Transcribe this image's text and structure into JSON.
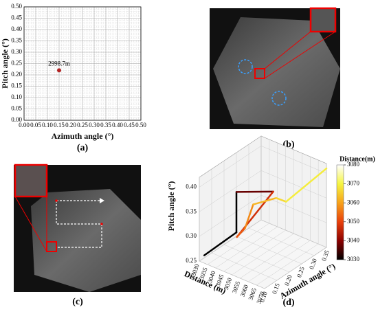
{
  "chart_data": [
    {
      "type": "scatter",
      "label": "(a)",
      "xlabel": "Azimuth angle (°)",
      "ylabel": "Pitch angle (°)",
      "x": [
        0.15
      ],
      "y": [
        0.22
      ],
      "annotations": [
        "2998.7m"
      ],
      "color": "#b22222",
      "xlim": [
        0,
        0.5
      ],
      "ylim": [
        0,
        0.5
      ],
      "minor_grid_step": 0.01,
      "xticks": [
        {
          "value": 0,
          "label": "0.00"
        },
        {
          "value": 0.05,
          "label": "0.05"
        },
        {
          "value": 0.1,
          "label": "0.10"
        },
        {
          "value": 0.15,
          "label": "0.15"
        },
        {
          "value": 0.2,
          "label": "0.20"
        },
        {
          "value": 0.25,
          "label": "0.25"
        },
        {
          "value": 0.3,
          "label": "0.30"
        },
        {
          "value": 0.35,
          "label": "0.35"
        },
        {
          "value": 0.4,
          "label": "0.40"
        },
        {
          "value": 0.45,
          "label": "0.45"
        },
        {
          "value": 0.5,
          "label": "0.50"
        }
      ],
      "yticks": [
        {
          "value": 0,
          "label": "0.00"
        },
        {
          "value": 0.05,
          "label": "0.05"
        },
        {
          "value": 0.1,
          "label": "0.10"
        },
        {
          "value": 0.15,
          "label": "0.15"
        },
        {
          "value": 0.2,
          "label": "0.20"
        },
        {
          "value": 0.25,
          "label": "0.25"
        },
        {
          "value": 0.3,
          "label": "0.30"
        },
        {
          "value": 0.35,
          "label": "0.35"
        },
        {
          "value": 0.4,
          "label": "0.40"
        },
        {
          "value": 0.45,
          "label": "0.45"
        },
        {
          "value": 0.5,
          "label": "0.50"
        }
      ]
    },
    {
      "type": "line3d",
      "label": "(d)",
      "xlabel": "Azimuth angle (°)",
      "ylabel": "Distance (m)",
      "zlabel": "Pitch angle (°)",
      "colorbar_label": "Distance(m)",
      "x": [
        0.12,
        0.25,
        0.25,
        0.3,
        0.12,
        0.12,
        0.12,
        0.18,
        0.2,
        0.35
      ],
      "y": [
        3030,
        3030,
        3030,
        3045,
        3050,
        3055,
        3060,
        3065,
        3068,
        3070
      ],
      "z": [
        0.255,
        0.258,
        0.34,
        0.345,
        0.32,
        0.345,
        0.4,
        0.4,
        0.39,
        0.41
      ],
      "xlim": [
        0.1,
        0.35
      ],
      "ylim": [
        3030,
        3070
      ],
      "zlim": [
        0.25,
        0.42
      ],
      "clim": [
        3030,
        3080
      ],
      "colormap": [
        "#000000",
        "#8b0000",
        "#e8400c",
        "#f7a21b",
        "#f5f542",
        "#ffffff"
      ],
      "xticks": [
        {
          "value": 0.1,
          "label": "0.10"
        },
        {
          "value": 0.15,
          "label": "0.15"
        },
        {
          "value": 0.2,
          "label": "0.20"
        },
        {
          "value": 0.25,
          "label": "0.25"
        },
        {
          "value": 0.3,
          "label": "0.30"
        },
        {
          "value": 0.35,
          "label": "0.35"
        }
      ],
      "yticks": [
        3030,
        3035,
        3040,
        3045,
        3050,
        3055,
        3060,
        3065,
        3070
      ],
      "zticks": [
        {
          "value": 0.25,
          "label": "0.25"
        },
        {
          "value": 0.3,
          "label": "0.30"
        },
        {
          "value": 0.35,
          "label": "0.35"
        },
        {
          "value": 0.4,
          "label": "0.40"
        }
      ],
      "cticks": [
        3030,
        3040,
        3050,
        3060,
        3070,
        3080
      ]
    }
  ],
  "images": [
    {
      "label": "(b)"
    },
    {
      "label": "(c)"
    }
  ]
}
